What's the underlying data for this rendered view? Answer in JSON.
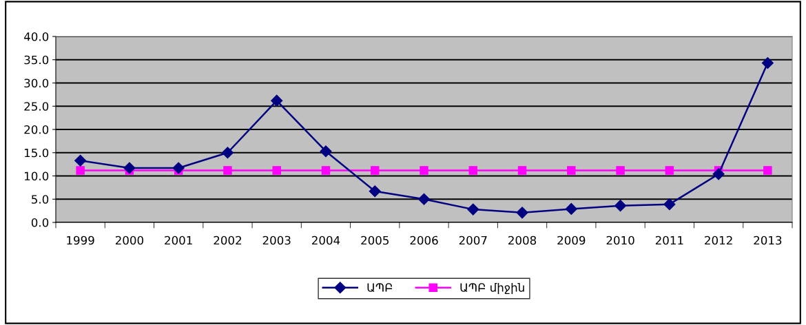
{
  "chart_data": {
    "type": "line",
    "categories": [
      "1999",
      "2000",
      "2001",
      "2002",
      "2003",
      "2004",
      "2005",
      "2006",
      "2007",
      "2008",
      "2009",
      "2010",
      "2011",
      "2012",
      "2013"
    ],
    "series": [
      {
        "name": "ԱՊԲ",
        "color": "#000080",
        "marker": "diamond",
        "values": [
          13.3,
          11.7,
          11.7,
          15.0,
          26.2,
          15.3,
          6.7,
          5.0,
          2.8,
          2.1,
          2.9,
          3.6,
          3.9,
          10.4,
          34.3
        ]
      },
      {
        "name": "ԱՊԲ միջին",
        "color": "#ff00ff",
        "marker": "square",
        "values": [
          11.2,
          11.2,
          11.2,
          11.2,
          11.2,
          11.2,
          11.2,
          11.2,
          11.2,
          11.2,
          11.2,
          11.2,
          11.2,
          11.2,
          11.2
        ]
      }
    ],
    "ylim": [
      0,
      40
    ],
    "yticks": [
      {
        "value": 0,
        "label": "0.0"
      },
      {
        "value": 5,
        "label": "5.0"
      },
      {
        "value": 10,
        "label": "10.0"
      },
      {
        "value": 15,
        "label": "15.0"
      },
      {
        "value": 20,
        "label": "20.0"
      },
      {
        "value": 25,
        "label": "25.0"
      },
      {
        "value": 30,
        "label": "30.0"
      },
      {
        "value": 35,
        "label": "35.0"
      },
      {
        "value": 40,
        "label": "40.0"
      }
    ],
    "grid": "y",
    "legend": "bottom",
    "line_style": "solid"
  }
}
